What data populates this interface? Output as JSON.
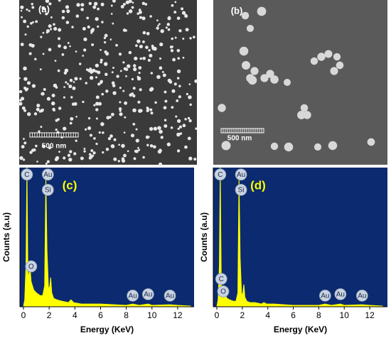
{
  "images": [
    {
      "label": "(a)",
      "scale_bar": "500 nm"
    },
    {
      "label": "(b)",
      "scale_bar": "500 nm"
    }
  ],
  "chart_data": [
    {
      "type": "area",
      "label": "(c)",
      "xlabel": "Energy (KeV)",
      "ylabel": "Counts (a.u)",
      "xlim": [
        0,
        13
      ],
      "ylim": [
        0,
        100
      ],
      "xticks": [
        0,
        2,
        4,
        6,
        8,
        10,
        12
      ],
      "series": [
        {
          "color": "#ffff00",
          "x": [
            0,
            0.1,
            0.2,
            0.27,
            0.35,
            0.45,
            0.52,
            0.6,
            0.8,
            1.0,
            1.3,
            1.5,
            1.65,
            1.74,
            1.83,
            1.95,
            2.05,
            2.12,
            2.2,
            2.35,
            2.6,
            3.0,
            3.5,
            3.7,
            3.9,
            4.5,
            6,
            8,
            8.5,
            9,
            9.7,
            10,
            11.4,
            12,
            13
          ],
          "values": [
            0,
            5,
            30,
            100,
            20,
            25,
            27,
            18,
            12,
            10,
            8,
            8,
            15,
            93,
            40,
            12,
            15,
            21,
            10,
            6,
            5,
            4,
            3,
            5,
            3,
            2,
            2,
            1,
            2,
            1,
            2,
            1,
            1.5,
            1,
            0.5
          ]
        }
      ],
      "annotations": [
        {
          "text": "C",
          "x": 0.27,
          "y": 95
        },
        {
          "text": "Au",
          "x": 1.9,
          "y": 95
        },
        {
          "text": "Si",
          "x": 1.9,
          "y": 84
        },
        {
          "text": "O",
          "x": 0.6,
          "y": 29
        },
        {
          "text": "Au",
          "x": 8.5,
          "y": 8
        },
        {
          "text": "Au",
          "x": 9.7,
          "y": 9
        },
        {
          "text": "Au",
          "x": 11.4,
          "y": 8
        }
      ]
    },
    {
      "type": "area",
      "label": "(d)",
      "xlabel": "Energy (KeV)",
      "ylabel": "Counts (a.u)",
      "xlim": [
        0,
        13
      ],
      "ylim": [
        0,
        100
      ],
      "xticks": [
        0,
        2,
        4,
        6,
        8,
        10,
        12
      ],
      "series": [
        {
          "color": "#ffff00",
          "x": [
            0,
            0.1,
            0.2,
            0.27,
            0.35,
            0.45,
            0.52,
            0.6,
            0.8,
            1.0,
            1.3,
            1.5,
            1.65,
            1.74,
            1.83,
            1.95,
            2.05,
            2.12,
            2.2,
            2.35,
            2.6,
            3.0,
            3.5,
            3.7,
            3.9,
            4.5,
            6,
            8,
            8.5,
            9,
            9.7,
            10,
            11.4,
            12,
            13
          ],
          "values": [
            0,
            5,
            30,
            100,
            15,
            12,
            13,
            10,
            6,
            5,
            4,
            4,
            10,
            93,
            35,
            8,
            10,
            16,
            7,
            4,
            3,
            3,
            2,
            3,
            2,
            2,
            1,
            1,
            2,
            1,
            2,
            1,
            1.5,
            1,
            0.5
          ]
        }
      ],
      "annotations": [
        {
          "text": "C",
          "x": 0.27,
          "y": 95
        },
        {
          "text": "Au",
          "x": 1.9,
          "y": 95
        },
        {
          "text": "Si",
          "x": 1.9,
          "y": 84
        },
        {
          "text": "C",
          "x": 0.35,
          "y": 20
        },
        {
          "text": "O",
          "x": 0.5,
          "y": 11
        },
        {
          "text": "Au",
          "x": 8.5,
          "y": 8
        },
        {
          "text": "Au",
          "x": 9.7,
          "y": 9
        },
        {
          "text": "Au",
          "x": 11.4,
          "y": 8
        }
      ]
    }
  ]
}
